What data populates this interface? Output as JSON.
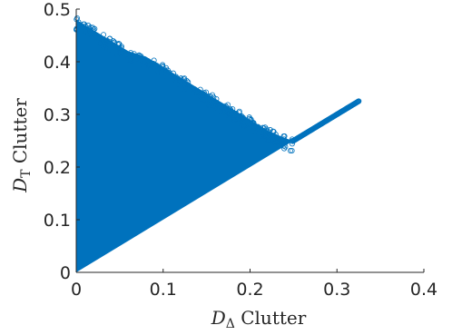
{
  "chart_data": {
    "type": "scatter",
    "xlabel_var": "D",
    "xlabel_sub": "Δ",
    "xlabel_rest": " Clutter",
    "ylabel_var": "D",
    "ylabel_sub": "T",
    "ylabel_rest": " Clutter",
    "xlim": [
      0,
      0.4
    ],
    "ylim": [
      0,
      0.5
    ],
    "xticks": [
      0,
      0.1,
      0.2,
      0.3,
      0.4
    ],
    "xtick_labels": [
      "0",
      "0.1",
      "0.2",
      "0.3",
      "0.4"
    ],
    "yticks": [
      0,
      0.1,
      0.2,
      0.3,
      0.4,
      0.5
    ],
    "ytick_labels": [
      "0",
      "0.1",
      "0.2",
      "0.3",
      "0.4",
      "0.5"
    ],
    "grid": false,
    "marker": "circle-open",
    "color": "#0072BD",
    "upper_envelope": [
      [
        0,
        0.48
      ],
      [
        0.01,
        0.47
      ],
      [
        0.02,
        0.46
      ],
      [
        0.04,
        0.44
      ],
      [
        0.06,
        0.42
      ],
      [
        0.08,
        0.41
      ],
      [
        0.1,
        0.39
      ],
      [
        0.12,
        0.37
      ],
      [
        0.14,
        0.35
      ],
      [
        0.16,
        0.33
      ],
      [
        0.18,
        0.31
      ],
      [
        0.2,
        0.29
      ],
      [
        0.22,
        0.27
      ],
      [
        0.24,
        0.255
      ],
      [
        0.25,
        0.25
      ]
    ],
    "lower_boundary": [
      [
        0,
        0
      ],
      [
        0.25,
        0.25
      ]
    ],
    "diagonal_tail": [
      [
        0.25,
        0.25
      ],
      [
        0.325,
        0.325
      ]
    ]
  }
}
